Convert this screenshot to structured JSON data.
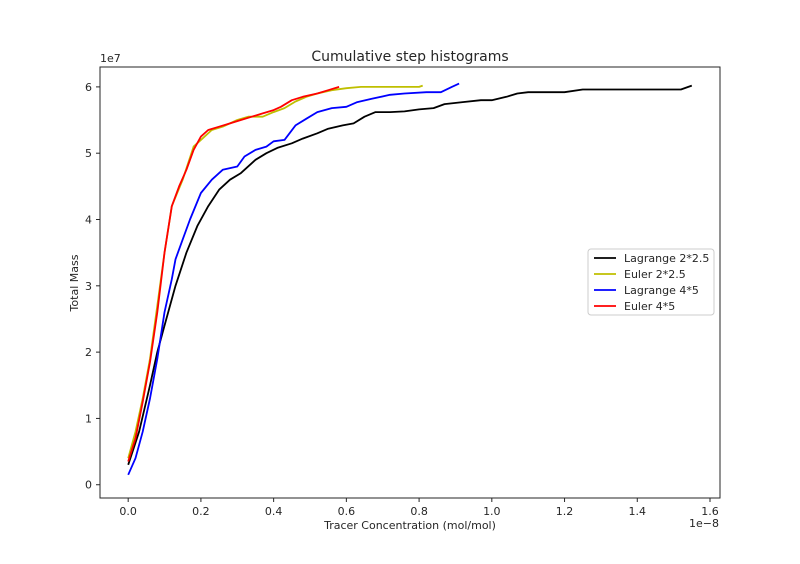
{
  "chart_data": {
    "type": "line",
    "title": "Cumulative step histograms",
    "xlabel": "Tracer Concentration (mol/mol)",
    "ylabel": "Total Mass",
    "x_offset_label": "1e−8",
    "y_offset_label": "1e7",
    "xlim": [
      -0.0775,
      1.6275
    ],
    "ylim": [
      -0.2,
      6.3
    ],
    "x_ticks": [
      0.0,
      0.2,
      0.4,
      0.6,
      0.8,
      1.0,
      1.2,
      1.4,
      1.6
    ],
    "x_tick_labels": [
      "0.0",
      "0.2",
      "0.4",
      "0.6",
      "0.8",
      "1.0",
      "1.2",
      "1.4",
      "1.6"
    ],
    "y_ticks": [
      0,
      1,
      2,
      3,
      4,
      5,
      6
    ],
    "y_tick_labels": [
      "0",
      "1",
      "2",
      "3",
      "4",
      "5",
      "6"
    ],
    "grid": false,
    "legend_position": "center-right",
    "series": [
      {
        "name": "Lagrange 2*2.5",
        "color": "#000000",
        "points": [
          [
            0.0,
            0.3
          ],
          [
            0.03,
            0.8
          ],
          [
            0.06,
            1.5
          ],
          [
            0.08,
            2.0
          ],
          [
            0.1,
            2.4
          ],
          [
            0.13,
            3.0
          ],
          [
            0.16,
            3.5
          ],
          [
            0.19,
            3.9
          ],
          [
            0.22,
            4.2
          ],
          [
            0.25,
            4.45
          ],
          [
            0.28,
            4.6
          ],
          [
            0.31,
            4.7
          ],
          [
            0.35,
            4.9
          ],
          [
            0.38,
            5.0
          ],
          [
            0.41,
            5.08
          ],
          [
            0.45,
            5.15
          ],
          [
            0.48,
            5.22
          ],
          [
            0.52,
            5.3
          ],
          [
            0.55,
            5.37
          ],
          [
            0.59,
            5.42
          ],
          [
            0.62,
            5.45
          ],
          [
            0.65,
            5.55
          ],
          [
            0.68,
            5.62
          ],
          [
            0.72,
            5.62
          ],
          [
            0.76,
            5.63
          ],
          [
            0.8,
            5.66
          ],
          [
            0.84,
            5.68
          ],
          [
            0.87,
            5.74
          ],
          [
            0.92,
            5.77
          ],
          [
            0.97,
            5.8
          ],
          [
            1.0,
            5.8
          ],
          [
            1.04,
            5.85
          ],
          [
            1.07,
            5.9
          ],
          [
            1.1,
            5.92
          ],
          [
            1.2,
            5.92
          ],
          [
            1.25,
            5.96
          ],
          [
            1.32,
            5.96
          ],
          [
            1.4,
            5.96
          ],
          [
            1.52,
            5.96
          ],
          [
            1.55,
            6.02
          ]
        ]
      },
      {
        "name": "Euler 2*2.5",
        "color": "#bfbf00",
        "points": [
          [
            0.0,
            0.4
          ],
          [
            0.02,
            0.8
          ],
          [
            0.04,
            1.3
          ],
          [
            0.06,
            1.9
          ],
          [
            0.08,
            2.7
          ],
          [
            0.1,
            3.5
          ],
          [
            0.12,
            4.2
          ],
          [
            0.15,
            4.6
          ],
          [
            0.18,
            5.1
          ],
          [
            0.2,
            5.2
          ],
          [
            0.23,
            5.35
          ],
          [
            0.26,
            5.4
          ],
          [
            0.3,
            5.5
          ],
          [
            0.33,
            5.55
          ],
          [
            0.37,
            5.55
          ],
          [
            0.4,
            5.62
          ],
          [
            0.43,
            5.68
          ],
          [
            0.46,
            5.78
          ],
          [
            0.49,
            5.85
          ],
          [
            0.52,
            5.9
          ],
          [
            0.56,
            5.95
          ],
          [
            0.6,
            5.98
          ],
          [
            0.64,
            6.0
          ],
          [
            0.7,
            6.0
          ],
          [
            0.75,
            6.0
          ],
          [
            0.8,
            6.0
          ],
          [
            0.81,
            6.02
          ]
        ]
      },
      {
        "name": "Lagrange 4*5",
        "color": "#0000ff",
        "points": [
          [
            0.0,
            0.15
          ],
          [
            0.02,
            0.4
          ],
          [
            0.04,
            0.8
          ],
          [
            0.06,
            1.3
          ],
          [
            0.08,
            1.9
          ],
          [
            0.1,
            2.6
          ],
          [
            0.12,
            3.1
          ],
          [
            0.13,
            3.4
          ],
          [
            0.15,
            3.7
          ],
          [
            0.17,
            4.0
          ],
          [
            0.2,
            4.4
          ],
          [
            0.23,
            4.6
          ],
          [
            0.26,
            4.75
          ],
          [
            0.3,
            4.8
          ],
          [
            0.32,
            4.95
          ],
          [
            0.35,
            5.05
          ],
          [
            0.38,
            5.1
          ],
          [
            0.4,
            5.18
          ],
          [
            0.43,
            5.2
          ],
          [
            0.46,
            5.42
          ],
          [
            0.49,
            5.52
          ],
          [
            0.52,
            5.62
          ],
          [
            0.56,
            5.68
          ],
          [
            0.6,
            5.7
          ],
          [
            0.63,
            5.77
          ],
          [
            0.67,
            5.82
          ],
          [
            0.72,
            5.88
          ],
          [
            0.76,
            5.9
          ],
          [
            0.82,
            5.92
          ],
          [
            0.86,
            5.92
          ],
          [
            0.89,
            6.0
          ],
          [
            0.91,
            6.05
          ]
        ]
      },
      {
        "name": "Euler 4*5",
        "color": "#ff0000",
        "points": [
          [
            0.0,
            0.35
          ],
          [
            0.02,
            0.7
          ],
          [
            0.04,
            1.25
          ],
          [
            0.06,
            1.85
          ],
          [
            0.08,
            2.6
          ],
          [
            0.1,
            3.5
          ],
          [
            0.12,
            4.2
          ],
          [
            0.14,
            4.5
          ],
          [
            0.16,
            4.75
          ],
          [
            0.18,
            5.05
          ],
          [
            0.2,
            5.25
          ],
          [
            0.22,
            5.35
          ],
          [
            0.25,
            5.4
          ],
          [
            0.28,
            5.45
          ],
          [
            0.31,
            5.5
          ],
          [
            0.34,
            5.55
          ],
          [
            0.37,
            5.6
          ],
          [
            0.4,
            5.65
          ],
          [
            0.42,
            5.7
          ],
          [
            0.45,
            5.8
          ],
          [
            0.48,
            5.85
          ],
          [
            0.52,
            5.9
          ],
          [
            0.55,
            5.95
          ],
          [
            0.58,
            6.0
          ]
        ]
      }
    ]
  }
}
